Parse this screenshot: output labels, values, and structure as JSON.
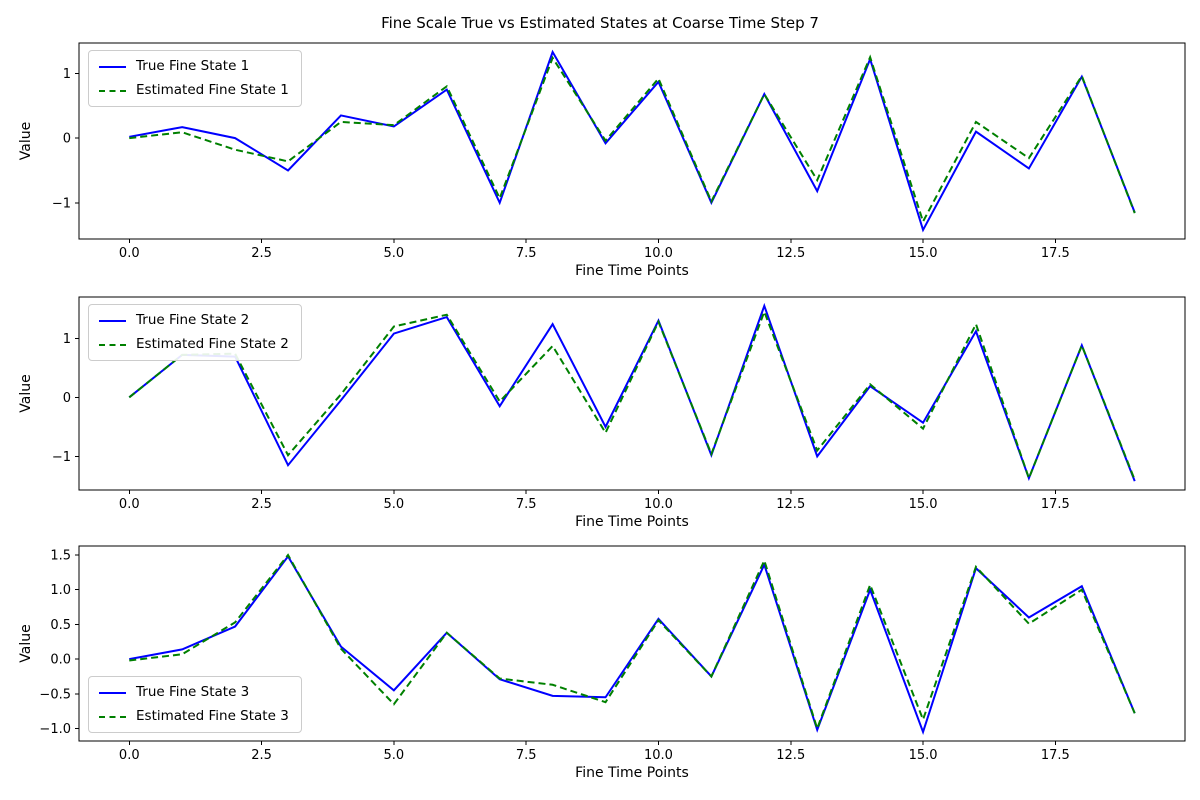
{
  "title": "Fine Scale True vs Estimated States at Coarse Time Step 7",
  "colors": {
    "true_line": "#0000ff",
    "estimated_line": "#008000",
    "frame": "#000000",
    "legend_border": "#cccccc"
  },
  "chart_data": [
    {
      "type": "line",
      "title": "",
      "xlabel": "Fine Time Points",
      "ylabel": "Value",
      "x": [
        0,
        1,
        2,
        3,
        4,
        5,
        6,
        7,
        8,
        9,
        10,
        11,
        12,
        13,
        14,
        15,
        16,
        17,
        18,
        19
      ],
      "xlim": [
        -0.95,
        19.95
      ],
      "ylim": [
        -1.56,
        1.47
      ],
      "xticks": [
        0,
        2.5,
        5,
        7.5,
        10,
        12.5,
        15,
        17.5
      ],
      "xtick_labels": [
        "0.0",
        "2.5",
        "5.0",
        "7.5",
        "10.0",
        "12.5",
        "15.0",
        "17.5"
      ],
      "yticks": [
        -1,
        0,
        1
      ],
      "ytick_labels": [
        "−1",
        "0",
        "1"
      ],
      "grid": false,
      "legend_position": "upper-left",
      "series": [
        {
          "name": "True Fine State 1",
          "color": "#0000ff",
          "style": "solid",
          "values": [
            0.02,
            0.17,
            0.0,
            -0.5,
            0.35,
            0.18,
            0.75,
            -1.0,
            1.33,
            -0.08,
            0.87,
            -1.0,
            0.68,
            -0.82,
            1.22,
            -1.42,
            0.1,
            -0.47,
            0.95,
            -1.15
          ]
        },
        {
          "name": "Estimated Fine State 1",
          "color": "#008000",
          "style": "dashed",
          "values": [
            0.0,
            0.09,
            -0.18,
            -0.36,
            0.25,
            0.2,
            0.8,
            -0.93,
            1.24,
            -0.04,
            0.92,
            -0.98,
            0.68,
            -0.65,
            1.25,
            -1.29,
            0.25,
            -0.31,
            0.96,
            -1.16
          ]
        }
      ]
    },
    {
      "type": "line",
      "title": "",
      "xlabel": "Fine Time Points",
      "ylabel": "Value",
      "x": [
        0,
        1,
        2,
        3,
        4,
        5,
        6,
        7,
        8,
        9,
        10,
        11,
        12,
        13,
        14,
        15,
        16,
        17,
        18,
        19
      ],
      "xlim": [
        -0.95,
        19.95
      ],
      "ylim": [
        -1.57,
        1.7
      ],
      "xticks": [
        0,
        2.5,
        5,
        7.5,
        10,
        12.5,
        15,
        17.5
      ],
      "xtick_labels": [
        "0.0",
        "2.5",
        "5.0",
        "7.5",
        "10.0",
        "12.5",
        "15.0",
        "17.5"
      ],
      "yticks": [
        -1,
        0,
        1
      ],
      "ytick_labels": [
        "−1",
        "0",
        "1"
      ],
      "grid": false,
      "legend_position": "upper-left",
      "series": [
        {
          "name": "True Fine State 2",
          "color": "#0000ff",
          "style": "solid",
          "values": [
            0.0,
            0.72,
            0.69,
            -1.15,
            -0.05,
            1.08,
            1.36,
            -0.15,
            1.24,
            -0.5,
            1.3,
            -0.98,
            1.55,
            -1.0,
            0.19,
            -0.43,
            1.12,
            -1.37,
            0.88,
            -1.42
          ]
        },
        {
          "name": "Estimated Fine State 2",
          "color": "#008000",
          "style": "dashed",
          "values": [
            0.0,
            0.72,
            0.74,
            -0.98,
            0.05,
            1.2,
            1.4,
            -0.07,
            0.87,
            -0.6,
            1.28,
            -0.96,
            1.45,
            -0.9,
            0.22,
            -0.53,
            1.24,
            -1.37,
            0.88,
            -1.4
          ]
        }
      ]
    },
    {
      "type": "line",
      "title": "",
      "xlabel": "Fine Time Points",
      "ylabel": "Value",
      "x": [
        0,
        1,
        2,
        3,
        4,
        5,
        6,
        7,
        8,
        9,
        10,
        11,
        12,
        13,
        14,
        15,
        16,
        17,
        18,
        19
      ],
      "xlim": [
        -0.95,
        19.95
      ],
      "ylim": [
        -1.18,
        1.63
      ],
      "xticks": [
        0,
        2.5,
        5,
        7.5,
        10,
        12.5,
        15,
        17.5
      ],
      "xtick_labels": [
        "0.0",
        "2.5",
        "5.0",
        "7.5",
        "10.0",
        "12.5",
        "15.0",
        "17.5"
      ],
      "yticks": [
        -1,
        -0.5,
        0,
        0.5,
        1,
        1.5
      ],
      "ytick_labels": [
        "−1.0",
        "−0.5",
        "0.0",
        "0.5",
        "1.0",
        "1.5"
      ],
      "grid": false,
      "legend_position": "lower-left",
      "series": [
        {
          "name": "True Fine State 3",
          "color": "#0000ff",
          "style": "solid",
          "values": [
            0.0,
            0.14,
            0.47,
            1.48,
            0.18,
            -0.45,
            0.38,
            -0.29,
            -0.53,
            -0.55,
            0.58,
            -0.25,
            1.36,
            -1.02,
            1.0,
            -1.05,
            1.31,
            0.6,
            1.05,
            -0.78
          ]
        },
        {
          "name": "Estimated Fine State 3",
          "color": "#008000",
          "style": "dashed",
          "values": [
            -0.02,
            0.07,
            0.53,
            1.5,
            0.15,
            -0.65,
            0.38,
            -0.28,
            -0.37,
            -0.62,
            0.56,
            -0.25,
            1.42,
            -1.0,
            1.07,
            -0.87,
            1.33,
            0.51,
            1.0,
            -0.78
          ]
        }
      ]
    }
  ]
}
